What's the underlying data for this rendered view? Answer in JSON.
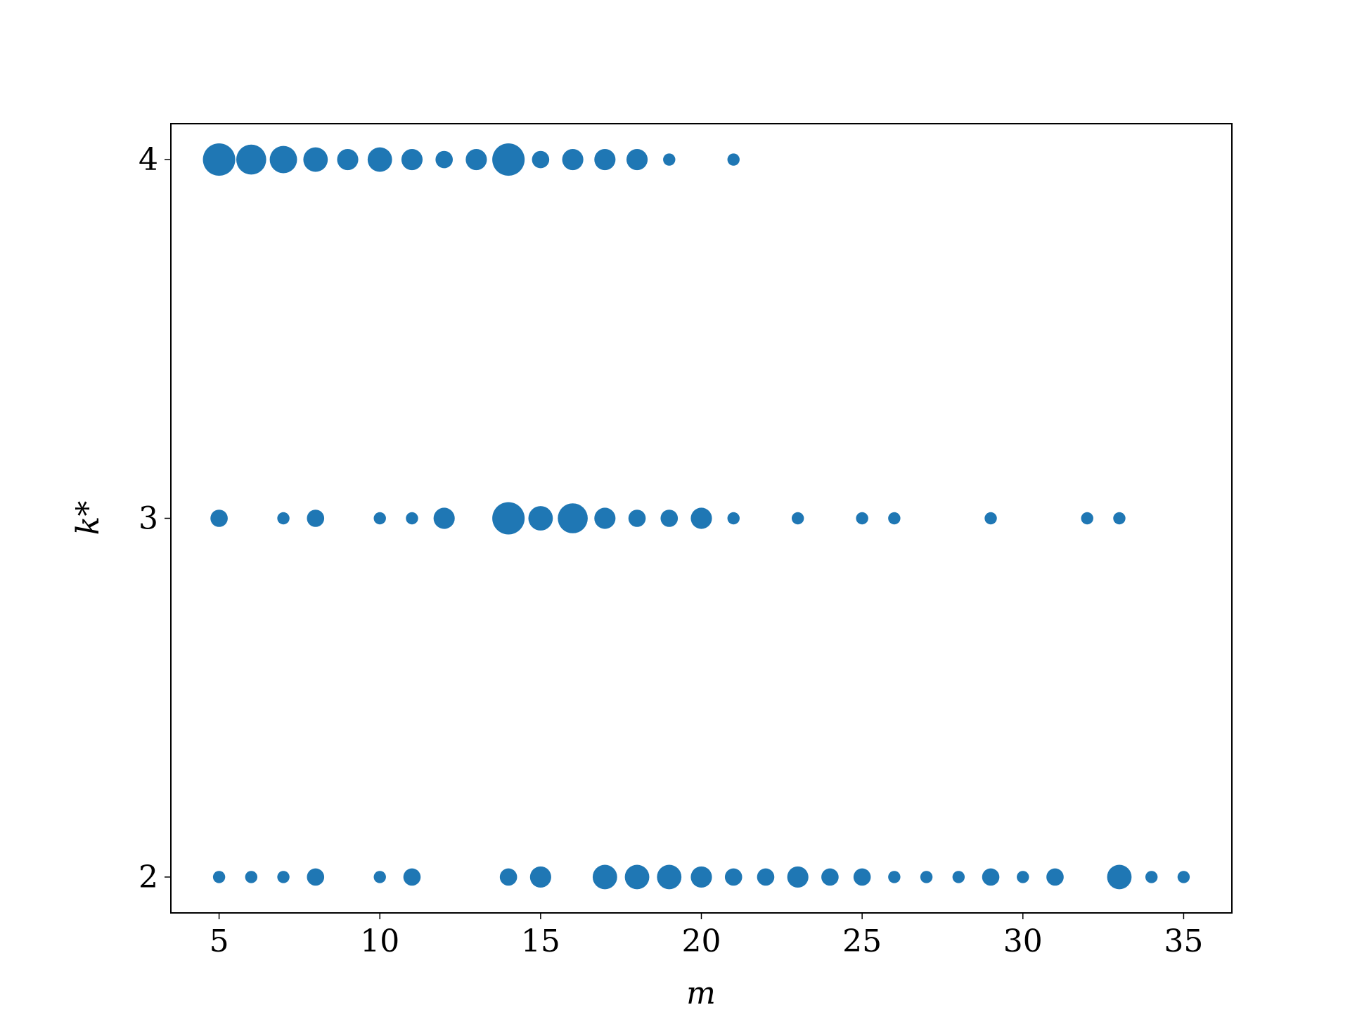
{
  "chart_data": {
    "type": "scatter",
    "xlabel": "m",
    "ylabel": "k*",
    "color": "#1f77b4",
    "x": [
      5,
      6,
      7,
      8,
      9,
      10,
      11,
      12,
      13,
      14,
      15,
      16,
      17,
      18,
      19,
      21,
      5,
      7,
      8,
      10,
      11,
      12,
      14,
      15,
      16,
      17,
      18,
      19,
      20,
      21,
      23,
      25,
      26,
      29,
      32,
      33,
      5,
      6,
      7,
      8,
      10,
      11,
      14,
      15,
      17,
      18,
      19,
      20,
      21,
      22,
      23,
      24,
      25,
      26,
      27,
      28,
      29,
      30,
      31,
      33,
      34,
      35
    ],
    "y": [
      4,
      4,
      4,
      4,
      4,
      4,
      4,
      4,
      4,
      4,
      4,
      4,
      4,
      4,
      4,
      4,
      3,
      3,
      3,
      3,
      3,
      3,
      3,
      3,
      3,
      3,
      3,
      3,
      3,
      3,
      3,
      3,
      3,
      3,
      3,
      3,
      2,
      2,
      2,
      2,
      2,
      2,
      2,
      2,
      2,
      2,
      2,
      2,
      2,
      2,
      2,
      2,
      2,
      2,
      2,
      2,
      2,
      2,
      2,
      2,
      2,
      2
    ],
    "sizes": [
      7,
      6,
      5,
      4,
      3,
      4,
      3,
      2,
      3,
      7,
      2,
      3,
      3,
      3,
      1,
      1,
      2,
      1,
      2,
      1,
      1,
      3,
      7,
      4,
      6,
      3,
      2,
      2,
      3,
      1,
      1,
      1,
      1,
      1,
      1,
      1,
      1,
      1,
      1,
      2,
      1,
      2,
      2,
      3,
      4,
      4,
      4,
      3,
      2,
      2,
      3,
      2,
      2,
      1,
      1,
      1,
      2,
      1,
      2,
      4,
      1,
      1
    ],
    "xlim": [
      3.5,
      36.5
    ],
    "ylim": [
      1.9,
      4.1
    ],
    "xticks": [
      5,
      10,
      15,
      20,
      25,
      30,
      35
    ],
    "yticks": [
      2,
      3,
      4
    ]
  }
}
